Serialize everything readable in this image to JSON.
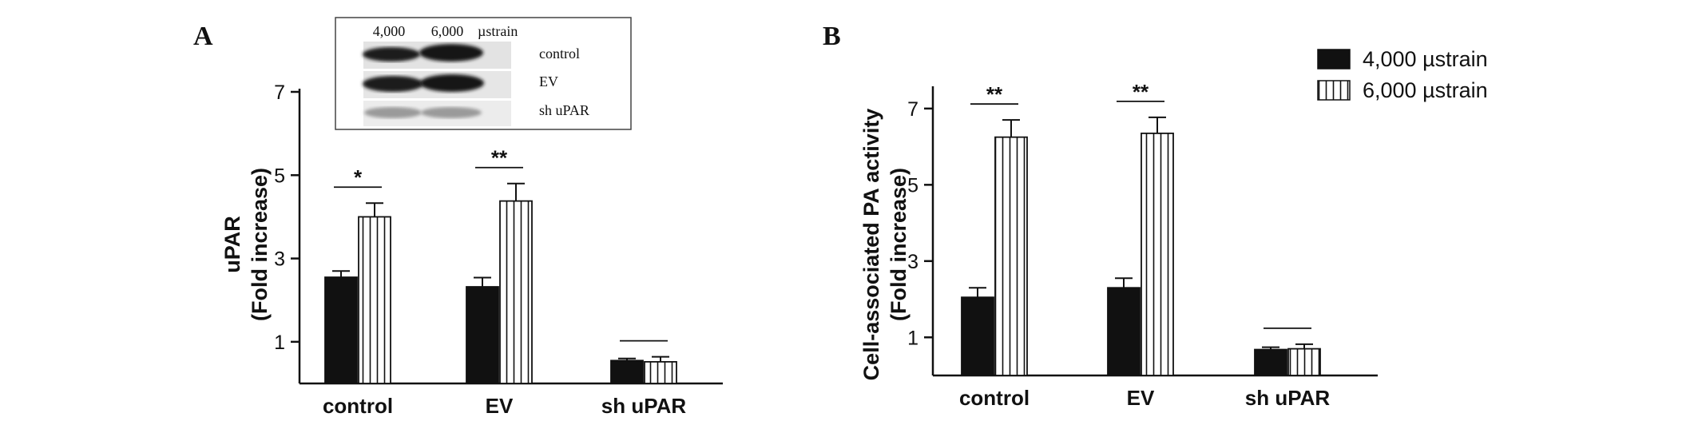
{
  "panels": [
    {
      "letter": "A",
      "ylabel_line1": "uPAR",
      "ylabel_line2": "(Fold increase)",
      "yticks": [
        1,
        3,
        5,
        7
      ],
      "ylim": [
        0,
        7
      ],
      "categories": [
        "control",
        "EV",
        "sh uPAR"
      ],
      "series": [
        {
          "values": [
            2.55,
            2.32,
            0.55
          ],
          "errors": [
            0.15,
            0.22,
            0.05
          ]
        },
        {
          "values": [
            4.0,
            4.38,
            0.52
          ],
          "errors": [
            0.33,
            0.42,
            0.12
          ]
        }
      ],
      "significance": [
        "*",
        "**",
        ""
      ],
      "blot": {
        "column_labels": [
          "4,000",
          "6,000"
        ],
        "unit": "µstrain",
        "rows": [
          "control",
          "EV",
          "sh uPAR"
        ]
      }
    },
    {
      "letter": "B",
      "ylabel_line1": "Cell-associated PA activity",
      "ylabel_line2": "(Fold increase)",
      "yticks": [
        1,
        3,
        5,
        7
      ],
      "ylim": [
        0,
        7.5
      ],
      "categories": [
        "control",
        "EV",
        "sh uPAR"
      ],
      "series": [
        {
          "values": [
            2.05,
            2.3,
            0.68
          ],
          "errors": [
            0.25,
            0.25,
            0.06
          ]
        },
        {
          "values": [
            6.25,
            6.35,
            0.7
          ],
          "errors": [
            0.45,
            0.42,
            0.12
          ]
        }
      ],
      "significance": [
        "**",
        "**",
        ""
      ]
    }
  ],
  "legend": [
    {
      "label": "4,000 µstrain",
      "fill": "#111111"
    },
    {
      "label": "6,000 µstrain",
      "fill": "hatch"
    }
  ]
}
